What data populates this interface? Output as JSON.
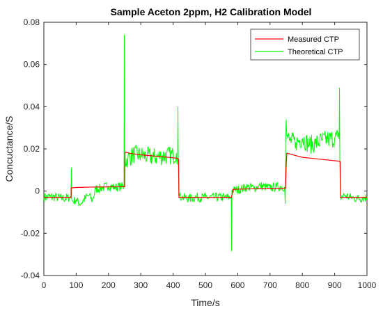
{
  "chart_data": {
    "type": "line",
    "title": "Sample Aceton 2ppm, H2 Calibration Model",
    "xlabel": "Time/s",
    "ylabel": "Concuctance/S",
    "xlim": [
      0,
      1000
    ],
    "ylim": [
      -0.04,
      0.08
    ],
    "xticks": [
      0,
      100,
      200,
      300,
      400,
      500,
      600,
      700,
      800,
      900,
      1000
    ],
    "yticks": [
      -0.04,
      -0.02,
      0,
      0.02,
      0.04,
      0.06,
      0.08
    ],
    "xtick_labels": [
      "0",
      "100",
      "200",
      "300",
      "400",
      "500",
      "600",
      "700",
      "800",
      "900",
      "1000"
    ],
    "ytick_labels": [
      "-0.04",
      "-0.02",
      "0",
      "0.02",
      "0.04",
      "0.06",
      "0.08"
    ],
    "grid": false,
    "legend_position": "top-right",
    "series": [
      {
        "name": "Measured CTP",
        "color": "#ff0000",
        "x": [
          0,
          84,
          84.5,
          100,
          150,
          200,
          248,
          250,
          251,
          270,
          300,
          350,
          400,
          415,
          417,
          418,
          450,
          500,
          550,
          580,
          582,
          585,
          600,
          650,
          700,
          745,
          748,
          750,
          752,
          780,
          800,
          850,
          900,
          915,
          917,
          918,
          950,
          1000
        ],
        "y": [
          -0.003,
          -0.003,
          0.0015,
          0.0017,
          0.0019,
          0.002,
          0.0021,
          0.002,
          0.0185,
          0.0178,
          0.0172,
          0.0165,
          0.0158,
          0.0155,
          0.015,
          -0.003,
          -0.003,
          -0.003,
          -0.003,
          -0.003,
          -0.002,
          0.0008,
          0.0009,
          0.0011,
          0.0013,
          0.0014,
          0.0014,
          0.012,
          0.018,
          0.0168,
          0.016,
          0.0152,
          0.0144,
          0.0141,
          0.014,
          -0.003,
          -0.003,
          -0.003
        ]
      },
      {
        "name": "Theoretical CTP",
        "color": "#00ff00",
        "x": [
          0,
          20,
          40,
          60,
          80,
          84,
          85,
          86,
          90,
          100,
          110,
          120,
          130,
          140,
          150,
          160,
          180,
          200,
          220,
          240,
          248,
          249,
          250,
          251,
          252,
          260,
          280,
          300,
          320,
          340,
          360,
          380,
          400,
          410,
          414,
          415,
          416,
          418,
          430,
          450,
          470,
          500,
          530,
          560,
          578,
          580,
          581,
          582,
          590,
          610,
          630,
          650,
          670,
          700,
          720,
          745,
          747,
          748,
          750,
          752,
          760,
          780,
          800,
          820,
          840,
          860,
          880,
          900,
          910,
          914,
          915,
          916,
          918,
          930,
          950,
          970,
          1000
        ],
        "y": [
          -0.003,
          -0.0025,
          -0.003,
          -0.0035,
          -0.003,
          -0.003,
          0.011,
          -0.004,
          -0.005,
          -0.004,
          -0.006,
          -0.005,
          -0.003,
          -0.002,
          -0.0045,
          0.001,
          0.0015,
          0.0025,
          0.0018,
          0.0022,
          0.002,
          0.074,
          0.02,
          0.018,
          0.014,
          0.0155,
          0.0175,
          0.017,
          0.0165,
          0.016,
          0.0165,
          0.017,
          0.0168,
          0.018,
          0.016,
          0.04,
          0.015,
          -0.0025,
          -0.003,
          -0.0035,
          -0.003,
          -0.003,
          -0.003,
          -0.003,
          -0.003,
          -0.003,
          -0.0285,
          0.0005,
          0.0005,
          0.001,
          0.002,
          0.0015,
          0.0025,
          0.0015,
          0.002,
          0.002,
          -0.006,
          0.0225,
          0.034,
          0.026,
          0.024,
          0.023,
          0.025,
          0.022,
          0.0225,
          0.024,
          0.0245,
          0.025,
          0.0255,
          0.0245,
          0.049,
          0.014,
          -0.003,
          -0.002,
          -0.003,
          -0.0035,
          -0.003
        ]
      }
    ]
  }
}
